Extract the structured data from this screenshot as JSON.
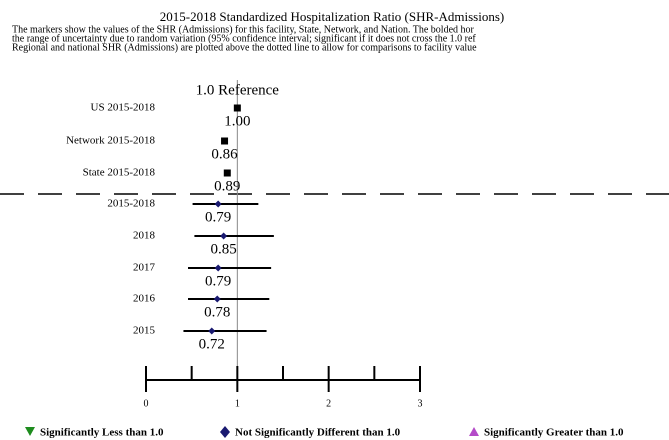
{
  "chart_data": {
    "type": "forest",
    "title": "2015-2018 Standardized Hospitalization Ratio (SHR-Admissions)",
    "subtitle": [
      "The markers show the values of the SHR (Admissions) for this facility, State, Network, and Nation. The bolded hor",
      "the range of uncertainty due to random variation (95% confidence interval; significant if it does not cross the 1.0 ref",
      "Regional and national SHR (Admissions) are plotted above the dotted line to allow for comparisons to facility value"
    ],
    "reference_label": "1.0 Reference",
    "reference_value": 1,
    "categories": [
      "US 2015-2018",
      "Network 2015-2018",
      "State 2015-2018",
      "2015-2018",
      "2018",
      "2017",
      "2016",
      "2015"
    ],
    "values": [
      1.0,
      0.86,
      0.89,
      0.79,
      0.85,
      0.79,
      0.78,
      0.72
    ],
    "value_labels": [
      "1.00",
      "0.86",
      "0.89",
      "0.79",
      "0.85",
      "0.79",
      "0.78",
      "0.72"
    ],
    "lower": [
      null,
      null,
      null,
      0.51,
      0.53,
      0.46,
      0.46,
      0.41
    ],
    "upper": [
      null,
      null,
      null,
      1.23,
      1.4,
      1.37,
      1.35,
      1.32
    ],
    "regional_color": "#000000",
    "facility_color": "#191970",
    "xlim": [
      0,
      3
    ],
    "xticks": [
      0,
      1,
      2,
      3
    ],
    "xminorticks": [
      0.5,
      1.5,
      2.5
    ],
    "legend": [
      {
        "name": "Significantly Less than 1.0",
        "color": "#1e8c1e"
      },
      {
        "name": "Not Significantly Different than 1.0",
        "color": "#191970"
      },
      {
        "name": "Significantly Greater than 1.0",
        "color": "#b44bc8"
      }
    ]
  }
}
